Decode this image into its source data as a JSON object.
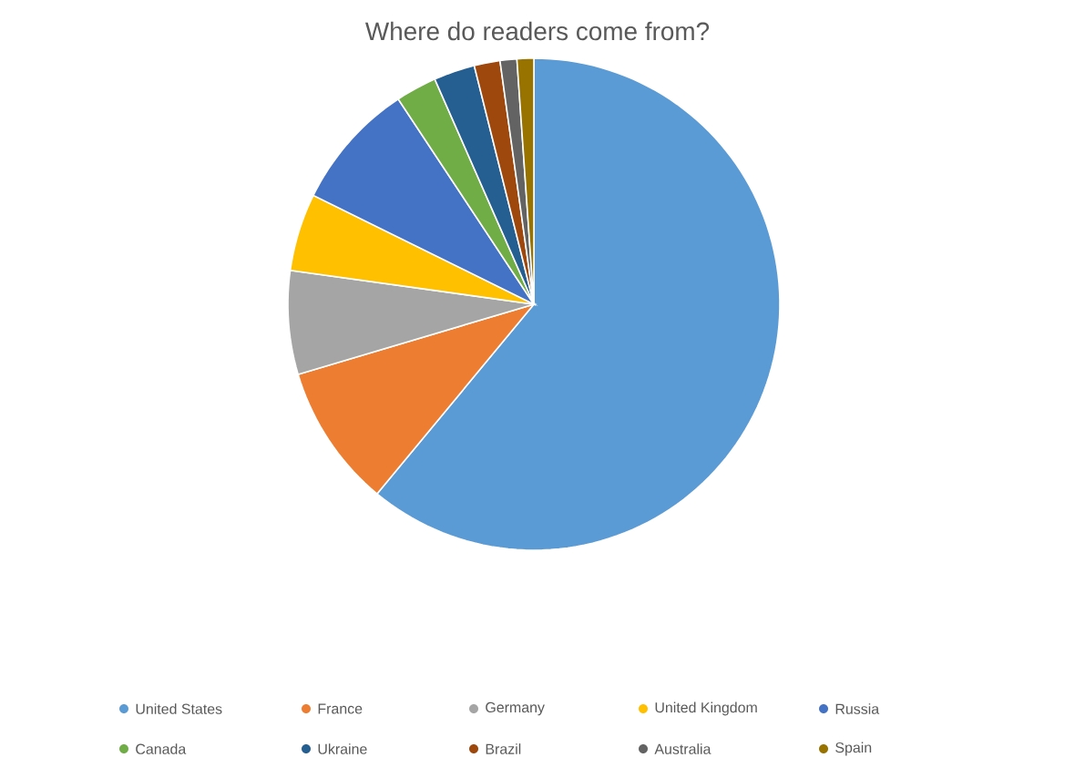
{
  "chart_data": {
    "type": "pie",
    "title": "Where do readers come from?",
    "categories": [
      "United States",
      "France",
      "Germany",
      "United Kingdom",
      "Russia",
      "Canada",
      "Ukraine",
      "Brazil",
      "Australia",
      "Spain"
    ],
    "values": [
      61,
      9.4,
      6.8,
      5.1,
      8.4,
      2.7,
      2.7,
      1.7,
      1.1,
      1.1
    ],
    "colors": [
      "#5b9bd5",
      "#ed7d31",
      "#a5a5a5",
      "#ffc000",
      "#4472c4",
      "#70ad47",
      "#255e91",
      "#9e480e",
      "#636363",
      "#997300"
    ],
    "legend": "bottom"
  }
}
